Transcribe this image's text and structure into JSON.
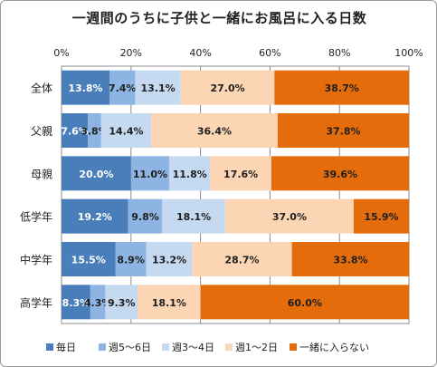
{
  "chart_data": {
    "type": "bar",
    "orientation": "horizontal",
    "stacked": "percent",
    "title": "一週間のうちに子供と一緒にお風呂に入る日数",
    "categories": [
      "全体",
      "父親",
      "母親",
      "低学年",
      "中学年",
      "高学年"
    ],
    "series": [
      {
        "name": "毎日",
        "color": "#4a7ebb",
        "text_color": "#ffffff",
        "values": [
          13.8,
          7.6,
          20.0,
          19.2,
          15.5,
          8.3
        ],
        "labels": [
          "13.8%",
          "7.6%",
          "20.0%",
          "19.2%",
          "15.5%",
          "8.3%"
        ]
      },
      {
        "name": "週5～6日",
        "color": "#8db4e2",
        "text_color": "#1f1f1f",
        "values": [
          7.4,
          3.8,
          11.0,
          9.8,
          8.9,
          4.3
        ],
        "labels": [
          "7.4%",
          "3.8%",
          "11.0%",
          "9.8%",
          "8.9%",
          "4.3%"
        ]
      },
      {
        "name": "週3～4日",
        "color": "#c5d9f1",
        "text_color": "#1f1f1f",
        "values": [
          13.1,
          14.4,
          11.8,
          18.1,
          13.2,
          9.3
        ],
        "labels": [
          "13.1%",
          "14.4%",
          "11.8%",
          "18.1%",
          "13.2%",
          "9.3%"
        ]
      },
      {
        "name": "週1～2日",
        "color": "#fcd5b4",
        "text_color": "#1f1f1f",
        "values": [
          27.0,
          36.4,
          17.6,
          37.0,
          28.7,
          18.1
        ],
        "labels": [
          "27.0%",
          "36.4%",
          "17.6%",
          "37.0%",
          "28.7%",
          "18.1%"
        ]
      },
      {
        "name": "一緒に入らない",
        "color": "#e46c0a",
        "text_color": "#1f1f1f",
        "values": [
          38.7,
          37.8,
          39.6,
          15.9,
          33.8,
          60.0
        ],
        "labels": [
          "38.7%",
          "37.8%",
          "39.6%",
          "15.9%",
          "33.8%",
          "60.0%"
        ]
      }
    ],
    "xlim": [
      0,
      100
    ],
    "xticks": [
      "0%",
      "20%",
      "40%",
      "60%",
      "80%",
      "100%"
    ],
    "xticks_position": "top",
    "grid": true,
    "legend_position": "bottom"
  }
}
